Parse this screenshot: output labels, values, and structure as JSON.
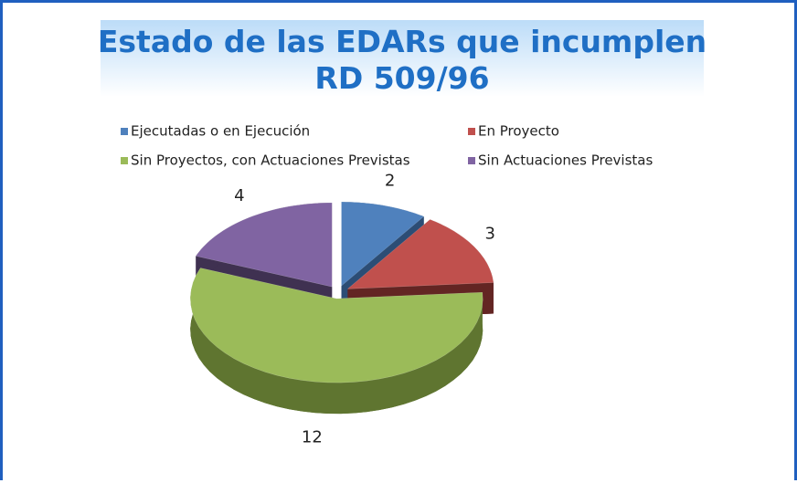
{
  "chart_data": {
    "type": "pie3d",
    "title": "Estado de las EDARs que incumplen RD 509/96",
    "categories": [
      "Ejecutadas o en Ejecución",
      "En Proyecto",
      "Sin Proyectos, con Actuaciones Previstas",
      "Sin Actuaciones Previstas"
    ],
    "series": [
      {
        "name": "EDARs",
        "values": [
          2,
          3,
          12,
          4
        ]
      }
    ],
    "colors": [
      "#4f81bd",
      "#c0504d",
      "#9bbb59",
      "#8064a2"
    ],
    "dark_colors": [
      "#2c4d75",
      "#632523",
      "#5f7530",
      "#3f3151"
    ]
  }
}
